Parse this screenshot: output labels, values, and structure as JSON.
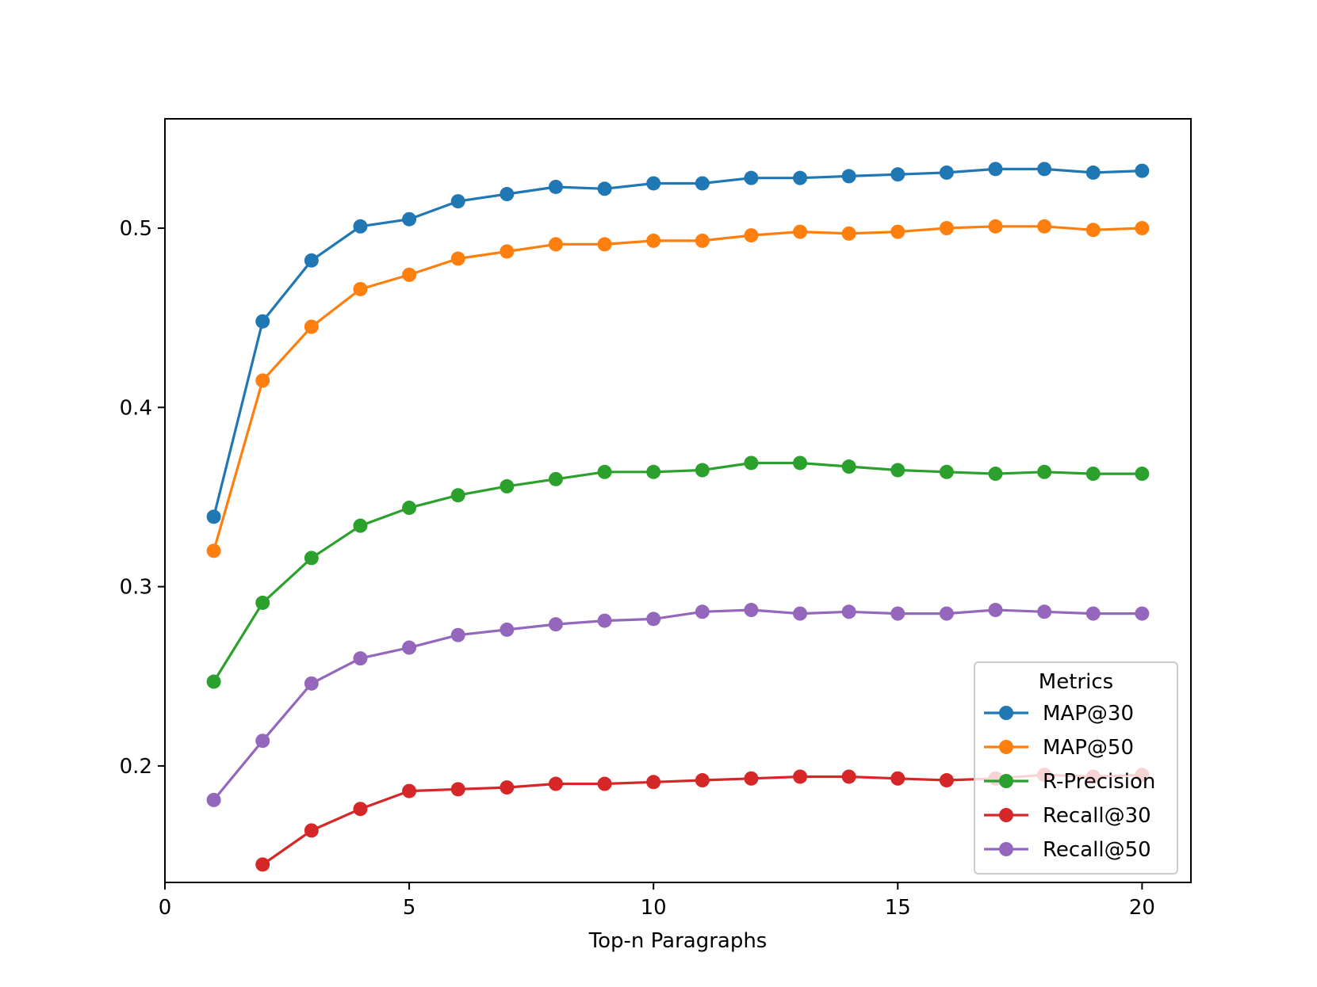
{
  "chart_data": {
    "type": "line",
    "title": "",
    "xlabel": "Top-n Paragraphs",
    "ylabel": "",
    "xlim": [
      0,
      21
    ],
    "ylim": [
      0.135,
      0.561
    ],
    "xticks": [
      0,
      5,
      10,
      15,
      20
    ],
    "yticks": [
      0.2,
      0.3,
      0.4,
      0.5
    ],
    "xtick_labels": [
      "0",
      "5",
      "10",
      "15",
      "20"
    ],
    "ytick_labels": [
      "0.2",
      "0.3",
      "0.4",
      "0.5"
    ],
    "grid": false,
    "legend": {
      "title": "Metrics",
      "position": "lower-right"
    },
    "series": [
      {
        "name": "MAP@30",
        "color": "#1f77b4",
        "x": [
          1,
          2,
          3,
          4,
          5,
          6,
          7,
          8,
          9,
          10,
          11,
          12,
          13,
          14,
          15,
          16,
          17,
          18,
          19,
          20
        ],
        "values": [
          0.339,
          0.448,
          0.482,
          0.501,
          0.505,
          0.515,
          0.519,
          0.523,
          0.522,
          0.525,
          0.525,
          0.528,
          0.528,
          0.529,
          0.53,
          0.531,
          0.533,
          0.533,
          0.531,
          0.532
        ]
      },
      {
        "name": "MAP@50",
        "color": "#ff7f0e",
        "x": [
          1,
          2,
          3,
          4,
          5,
          6,
          7,
          8,
          9,
          10,
          11,
          12,
          13,
          14,
          15,
          16,
          17,
          18,
          19,
          20
        ],
        "values": [
          0.32,
          0.415,
          0.445,
          0.466,
          0.474,
          0.483,
          0.487,
          0.491,
          0.491,
          0.493,
          0.493,
          0.496,
          0.498,
          0.497,
          0.498,
          0.5,
          0.501,
          0.501,
          0.499,
          0.5
        ]
      },
      {
        "name": "R-Precision",
        "color": "#2ca02c",
        "x": [
          1,
          2,
          3,
          4,
          5,
          6,
          7,
          8,
          9,
          10,
          11,
          12,
          13,
          14,
          15,
          16,
          17,
          18,
          19,
          20
        ],
        "values": [
          0.247,
          0.291,
          0.316,
          0.334,
          0.344,
          0.351,
          0.356,
          0.36,
          0.364,
          0.364,
          0.365,
          0.369,
          0.369,
          0.367,
          0.365,
          0.364,
          0.363,
          0.364,
          0.363,
          0.363
        ]
      },
      {
        "name": "Recall@30",
        "color": "#d62728",
        "x": [
          2,
          3,
          4,
          5,
          6,
          7,
          8,
          9,
          10,
          11,
          12,
          13,
          14,
          15,
          16,
          17,
          18,
          19,
          20
        ],
        "values": [
          0.145,
          0.164,
          0.176,
          0.186,
          0.187,
          0.188,
          0.19,
          0.19,
          0.191,
          0.192,
          0.193,
          0.194,
          0.194,
          0.193,
          0.192,
          0.193,
          0.195,
          0.194,
          0.195
        ]
      },
      {
        "name": "Recall@50",
        "color": "#9467bd",
        "x": [
          1,
          2,
          3,
          4,
          5,
          6,
          7,
          8,
          9,
          10,
          11,
          12,
          13,
          14,
          15,
          16,
          17,
          18,
          19,
          20
        ],
        "values": [
          0.181,
          0.214,
          0.246,
          0.26,
          0.266,
          0.273,
          0.276,
          0.279,
          0.281,
          0.282,
          0.286,
          0.287,
          0.285,
          0.286,
          0.285,
          0.285,
          0.287,
          0.286,
          0.285,
          0.285
        ]
      }
    ]
  }
}
